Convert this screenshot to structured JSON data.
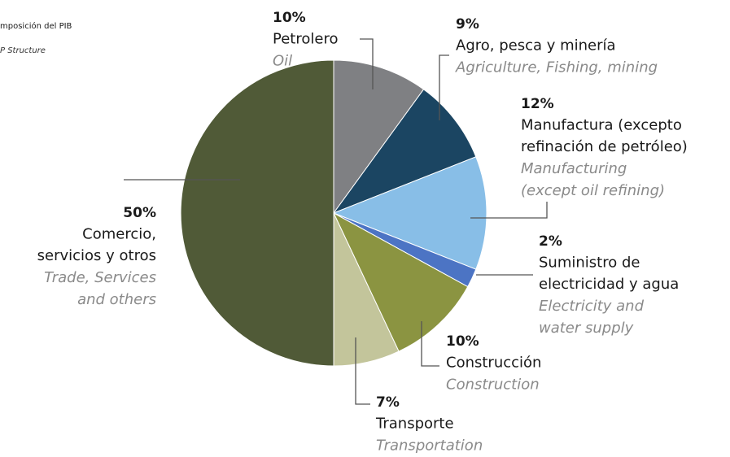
{
  "chart_data": {
    "type": "pie",
    "title": "mposición del PIB",
    "subtitle": "P Structure",
    "values": [
      10,
      9,
      12,
      2,
      10,
      7,
      50
    ],
    "value_labels": [
      "10%",
      "9%",
      "12%",
      "2%",
      "10%",
      "7%",
      "50%"
    ],
    "labels": [
      [
        "Petrolero"
      ],
      [
        "Agro, pesca y minería"
      ],
      [
        "Manufactura (excepto",
        "refinación de petróleo)"
      ],
      [
        "Suministro de",
        "electricidad y agua"
      ],
      [
        "Construcción"
      ],
      [
        "Transporte"
      ],
      [
        "Comercio,",
        "servicios y otros"
      ]
    ],
    "labels_en": [
      [
        "Oil"
      ],
      [
        "Agriculture, Fishing, mining"
      ],
      [
        "Manufacturing",
        "(except oil refining)"
      ],
      [
        "Electricity and",
        "water supply"
      ],
      [
        "Construction"
      ],
      [
        "Transportation"
      ],
      [
        "Trade, Services",
        "and others"
      ]
    ],
    "colors": [
      "#7f8083",
      "#1b4562",
      "#88bee7",
      "#4c74c4",
      "#8b9441",
      "#c3c59b",
      "#505a37"
    ]
  }
}
